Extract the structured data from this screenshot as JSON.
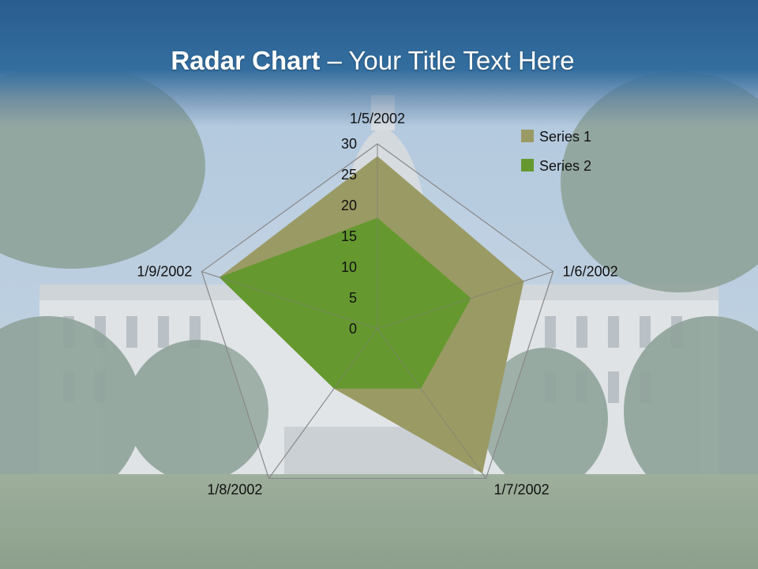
{
  "slide": {
    "title_bold": "Radar Chart",
    "title_rest": " – Your Title Text Here"
  },
  "chart_data": {
    "type": "radar",
    "categories": [
      "1/5/2002",
      "1/6/2002",
      "1/7/2002",
      "1/8/2002",
      "1/9/2002"
    ],
    "r_ticks": [
      0,
      5,
      10,
      15,
      20,
      25,
      30
    ],
    "rlim": [
      0,
      30
    ],
    "series": [
      {
        "name": "Series 1",
        "values": [
          28,
          25,
          29,
          12,
          27
        ],
        "color": "#9a9a64"
      },
      {
        "name": "Series 2",
        "values": [
          18,
          16,
          12,
          12,
          27
        ],
        "color": "#65992f"
      }
    ],
    "legend_position": "top-right",
    "grid": true
  },
  "colors": {
    "title_band": "#336e9f",
    "grid_line": "#888888"
  }
}
